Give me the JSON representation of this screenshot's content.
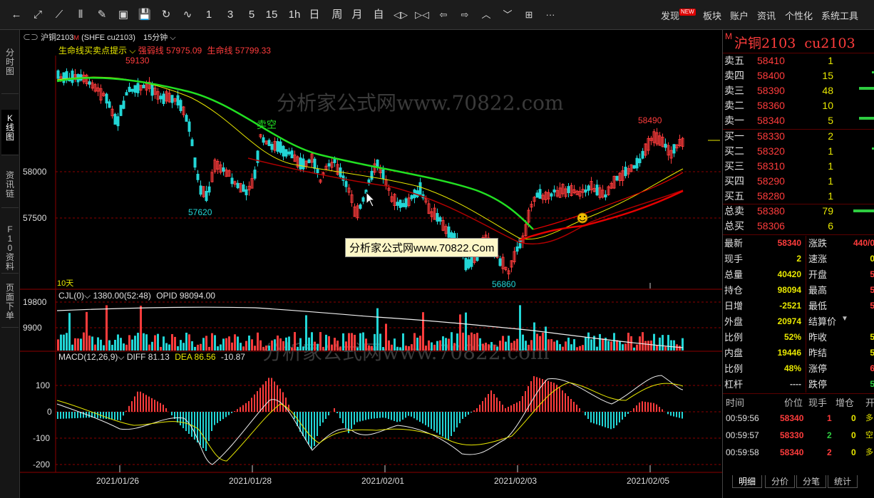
{
  "toolbar": {
    "buttons": [
      {
        "name": "back-icon",
        "glyph": "←"
      },
      {
        "name": "expand-icon",
        "glyph": "⤢"
      },
      {
        "name": "line-chart-icon",
        "glyph": "⟋"
      },
      {
        "name": "candle-icon",
        "glyph": "⫴"
      },
      {
        "name": "draw-icon",
        "glyph": "✎"
      },
      {
        "name": "image-icon",
        "glyph": "▣"
      },
      {
        "name": "save-icon",
        "glyph": "💾"
      },
      {
        "name": "refresh-icon",
        "glyph": "↻"
      },
      {
        "name": "trend-icon",
        "glyph": "∿"
      }
    ],
    "periods": [
      "1",
      "3",
      "5",
      "15",
      "1h",
      "日",
      "周",
      "月",
      "自"
    ],
    "nav_buttons": [
      {
        "name": "shrink-icon",
        "glyph": "◁▷"
      },
      {
        "name": "zoom-icon",
        "glyph": "▷◁"
      },
      {
        "name": "left-arrow-icon",
        "glyph": "⇦"
      },
      {
        "name": "right-arrow-icon",
        "glyph": "⇨"
      },
      {
        "name": "up-chevron-icon",
        "glyph": "︿"
      },
      {
        "name": "down-chevron-icon",
        "glyph": "﹀"
      },
      {
        "name": "layout-icon",
        "glyph": "⊞"
      },
      {
        "name": "more-icon",
        "glyph": "···"
      }
    ],
    "menu": [
      "发现",
      "板块",
      "账户",
      "资讯",
      "个性化",
      "系统工具"
    ],
    "new_badge": "NEW"
  },
  "left_tabs": [
    "分时图",
    "K线图",
    "资讯链",
    "F10资料",
    "页面下单"
  ],
  "chart_header": {
    "symbol": "沪铜2103",
    "marker": "M",
    "exchange": "(SHFE cu2103)",
    "period": "15分钟",
    "indicator_name": "生命线买卖点提示",
    "strong_weak_label": "强弱线",
    "strong_weak_value": "57975.09",
    "lifeline_label": "生命线",
    "lifeline_value": "57799.33"
  },
  "price_axis": {
    "labels": [
      "58000",
      "57500"
    ]
  },
  "annotations": {
    "high_1": "59130",
    "low_1": "57620",
    "low_2": "56860",
    "high_2": "58490",
    "signal": "卖空",
    "days": "10天",
    "watermark": "分析家公式网www.70822.com",
    "tooltip": "分析家公式网www.70822.Com"
  },
  "volume_panel": {
    "title": "CJL(0)",
    "value1": "1380.00(52:48)",
    "opid": "OPID 98094.00",
    "axis": [
      "19800",
      "9900"
    ]
  },
  "macd_panel": {
    "title": "MACD(12,26,9)",
    "diff": "DIFF 81.13",
    "dea": "DEA 86.56",
    "macd": "-10.87",
    "axis": [
      "100",
      "0",
      "-100",
      "-200"
    ]
  },
  "date_axis": [
    "2021/01/26",
    "2021/01/28",
    "2021/02/01",
    "2021/02/03",
    "2021/02/05"
  ],
  "right_panel": {
    "marker": "M",
    "title": "沪铜2103  cu2103",
    "asks": [
      {
        "label": "卖五",
        "price": "58410",
        "vol": "1"
      },
      {
        "label": "卖四",
        "price": "58400",
        "vol": "15"
      },
      {
        "label": "卖三",
        "price": "58390",
        "vol": "48"
      },
      {
        "label": "卖二",
        "price": "58360",
        "vol": "10"
      },
      {
        "label": "卖一",
        "price": "58340",
        "vol": "5"
      }
    ],
    "bids": [
      {
        "label": "买一",
        "price": "58330",
        "vol": "2"
      },
      {
        "label": "买二",
        "price": "58320",
        "vol": "1"
      },
      {
        "label": "买三",
        "price": "58310",
        "vol": "1"
      },
      {
        "label": "买四",
        "price": "58290",
        "vol": "1"
      },
      {
        "label": "买五",
        "price": "58280",
        "vol": "1"
      }
    ],
    "totals": [
      {
        "label": "总卖",
        "price": "58380",
        "vol": "79"
      },
      {
        "label": "总买",
        "price": "58306",
        "vol": "6"
      }
    ],
    "stats_left": [
      {
        "label": "最新",
        "value": "58340",
        "color": "#ff3c3c"
      },
      {
        "label": "现手",
        "value": "2",
        "color": "#e8e800"
      },
      {
        "label": "总量",
        "value": "40420",
        "color": "#e8e800"
      },
      {
        "label": "持仓",
        "value": "98094",
        "color": "#e8e800"
      },
      {
        "label": "日增",
        "value": "-2521",
        "color": "#e8e800"
      },
      {
        "label": "外盘",
        "value": "20974",
        "color": "#e8e800"
      },
      {
        "label": "比例",
        "value": "52%",
        "color": "#e8e800"
      },
      {
        "label": "内盘",
        "value": "19446",
        "color": "#e8e800"
      },
      {
        "label": "比例",
        "value": "48%",
        "color": "#e8e800"
      },
      {
        "label": "杠杆",
        "value": "----",
        "color": "#c8c8c8"
      }
    ],
    "stats_right": [
      {
        "label": "涨跌",
        "value": "440/0",
        "color": "#ff3c3c"
      },
      {
        "label": "速涨",
        "value": "0",
        "color": "#e8e800"
      },
      {
        "label": "开盘",
        "value": "5",
        "color": "#ff3c3c"
      },
      {
        "label": "最高",
        "value": "5",
        "color": "#ff3c3c"
      },
      {
        "label": "最低",
        "value": "5",
        "color": "#ff3c3c"
      },
      {
        "label": "结算价",
        "value": "",
        "color": "#c8c8c8"
      },
      {
        "label": "昨收",
        "value": "5",
        "color": "#e8e800"
      },
      {
        "label": "昨结",
        "value": "5",
        "color": "#e8e800"
      },
      {
        "label": "涨停",
        "value": "6",
        "color": "#ff3c3c"
      },
      {
        "label": "跌停",
        "value": "5",
        "color": "#2ecc40"
      }
    ],
    "ticks_header": [
      "时间",
      "价位",
      "现手",
      "增仓",
      "开"
    ],
    "ticks": [
      {
        "time": "00:59:56",
        "price": "58340",
        "vol": "1",
        "chg": "0",
        "type": "多"
      },
      {
        "time": "00:59:57",
        "price": "58330",
        "vol": "2",
        "chg": "0",
        "type": "空"
      },
      {
        "time": "00:59:58",
        "price": "58340",
        "vol": "2",
        "chg": "0",
        "type": "多"
      }
    ]
  },
  "bottom_tabs": [
    "明细",
    "分价",
    "分笔",
    "统计"
  ],
  "colors": {
    "up": "#ff3c3c",
    "down": "#22d6d6",
    "lifeline": "#22e022",
    "strongline": "#e60000",
    "ma_yellow": "#e8e800"
  }
}
